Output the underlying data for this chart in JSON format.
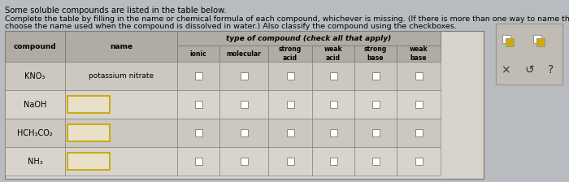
{
  "title1": "Some soluble compounds are listed in the table below.",
  "title2": "Complete the table by filling in the name or chemical formula of each compound, whichever is missing. (If there is more than one way to name the compound,",
  "title3": "choose the name used when the compound is dissolved in water.) Also classify the compound using the checkboxes.",
  "col_header1": "compound",
  "col_header2": "name",
  "col_header3": "type of compound (check all that apply)",
  "sub_headers": [
    "ionic",
    "molecular",
    "strong\nacid",
    "weak\nacid",
    "strong\nbase",
    "weak\nbase"
  ],
  "rows": [
    {
      "compound": "KNO₃",
      "name": "potassium nitrate",
      "has_input": false
    },
    {
      "compound": "NaOH",
      "name": "",
      "has_input": true
    },
    {
      "compound": "HCH₃CO₂",
      "name": "",
      "has_input": true
    },
    {
      "compound": "NH₃",
      "name": "",
      "has_input": true
    }
  ],
  "fig_bg": "#b8bcc0",
  "table_bg": "#d8d4cc",
  "header_bg": "#b0aca4",
  "row_even_bg": "#ccc8c0",
  "row_odd_bg": "#d8d4cc",
  "input_box_border": "#c8a800",
  "input_box_fill": "#e8e0c8",
  "checkbox_fill": "#ffffff",
  "checkbox_border": "#888880",
  "text_color": "#000000",
  "legend_bg": "#c0bcb4",
  "legend_border": "#999990"
}
